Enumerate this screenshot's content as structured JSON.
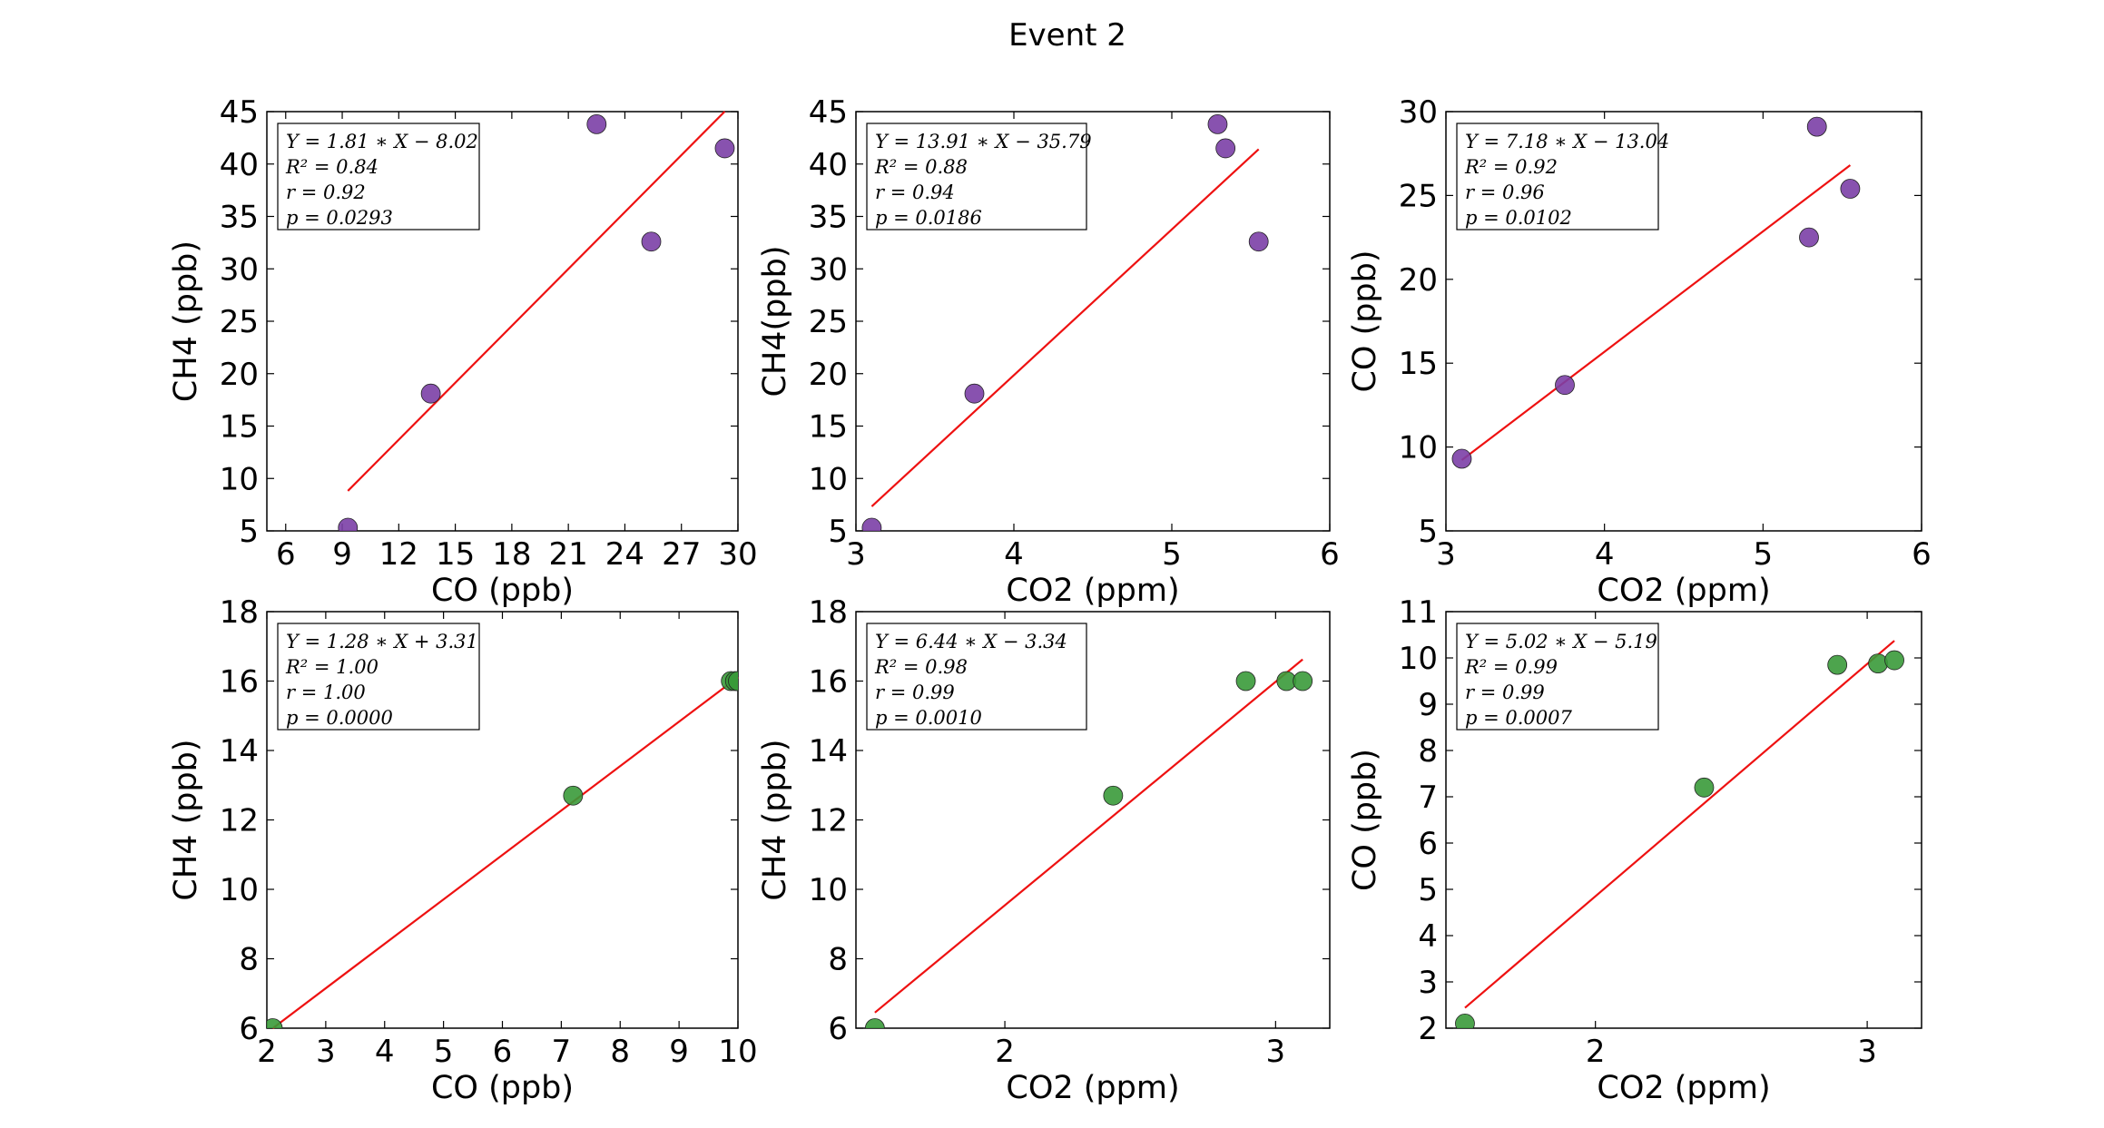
{
  "figure": {
    "title": "Event 2"
  },
  "chart_data": [
    {
      "type": "scatter",
      "xlabel": "CO (ppb)",
      "ylabel": "CH4 (ppb)",
      "xlim": [
        5,
        30
      ],
      "ylim": [
        5,
        45
      ],
      "xticks": [
        6,
        9,
        12,
        15,
        18,
        21,
        24,
        27,
        30
      ],
      "yticks": [
        5,
        10,
        15,
        20,
        25,
        30,
        35,
        40,
        45
      ],
      "point_color": "#7b3fa6",
      "points": [
        [
          9.3,
          5.3
        ],
        [
          13.7,
          18.1
        ],
        [
          22.5,
          43.8
        ],
        [
          25.4,
          32.6
        ],
        [
          29.3,
          41.5
        ]
      ],
      "fit": {
        "slope": 1.81,
        "intercept": -8.02,
        "x_range": [
          9.3,
          29.3
        ]
      },
      "stats": [
        "Y = 1.81 ∗ X − 8.02",
        "R² = 0.84",
        "r = 0.92",
        "p = 0.0293"
      ]
    },
    {
      "type": "scatter",
      "xlabel": "CO2 (ppm)",
      "ylabel": "CH4(ppb)",
      "xlim": [
        3,
        6
      ],
      "ylim": [
        5,
        45
      ],
      "xticks": [
        3,
        4,
        5,
        6
      ],
      "yticks": [
        5,
        10,
        15,
        20,
        25,
        30,
        35,
        40,
        45
      ],
      "point_color": "#7b3fa6",
      "points": [
        [
          3.1,
          5.3
        ],
        [
          3.75,
          18.1
        ],
        [
          5.29,
          43.8
        ],
        [
          5.34,
          41.5
        ],
        [
          5.55,
          32.6
        ]
      ],
      "fit": {
        "slope": 13.91,
        "intercept": -35.79,
        "x_range": [
          3.1,
          5.55
        ]
      },
      "stats": [
        "Y = 13.91 ∗ X − 35.79",
        "R² = 0.88",
        "r = 0.94",
        "p = 0.0186"
      ]
    },
    {
      "type": "scatter",
      "xlabel": "CO2 (ppm)",
      "ylabel": "CO (ppb)",
      "xlim": [
        3,
        6
      ],
      "ylim": [
        5,
        30
      ],
      "xticks": [
        3,
        4,
        5,
        6
      ],
      "yticks": [
        5,
        10,
        15,
        20,
        25,
        30
      ],
      "point_color": "#7b3fa6",
      "points": [
        [
          3.1,
          9.3
        ],
        [
          3.75,
          13.7
        ],
        [
          5.29,
          22.5
        ],
        [
          5.34,
          29.1
        ],
        [
          5.55,
          25.4
        ]
      ],
      "fit": {
        "slope": 7.18,
        "intercept": -13.04,
        "x_range": [
          3.1,
          5.55
        ]
      },
      "stats": [
        "Y = 7.18 ∗ X − 13.04",
        "R² = 0.92",
        "r = 0.96",
        "p = 0.0102"
      ]
    },
    {
      "type": "scatter",
      "xlabel": "CO (ppb)",
      "ylabel": "CH4 (ppb)",
      "xlim": [
        2,
        10
      ],
      "ylim": [
        6,
        18
      ],
      "xticks": [
        2,
        3,
        4,
        5,
        6,
        7,
        8,
        9,
        10
      ],
      "yticks": [
        6,
        8,
        10,
        12,
        14,
        16,
        18
      ],
      "point_color": "#3a9a3a",
      "points": [
        [
          2.1,
          6.0
        ],
        [
          7.2,
          12.7
        ],
        [
          9.88,
          16.0
        ],
        [
          9.95,
          16.0
        ],
        [
          10.0,
          16.0
        ]
      ],
      "fit": {
        "slope": 1.28,
        "intercept": 3.31,
        "x_range": [
          2.1,
          10.0
        ]
      },
      "stats": [
        "Y = 1.28 ∗ X + 3.31",
        "R² = 1.00",
        "r = 1.00",
        "p = 0.0000"
      ]
    },
    {
      "type": "scatter",
      "xlabel": "CO2 (ppm)",
      "ylabel": "CH4 (ppb)",
      "xlim": [
        1.45,
        3.2
      ],
      "ylim": [
        6,
        18
      ],
      "xticks": [
        2,
        3
      ],
      "yticks": [
        6,
        8,
        10,
        12,
        14,
        16,
        18
      ],
      "point_color": "#3a9a3a",
      "points": [
        [
          1.52,
          6.0
        ],
        [
          2.4,
          12.7
        ],
        [
          2.89,
          16.0
        ],
        [
          3.04,
          16.0
        ],
        [
          3.1,
          16.0
        ]
      ],
      "fit": {
        "slope": 6.44,
        "intercept": -3.34,
        "x_range": [
          1.52,
          3.1
        ]
      },
      "stats": [
        "Y = 6.44 ∗ X − 3.34",
        "R² = 0.98",
        "r = 0.99",
        "p = 0.0010"
      ]
    },
    {
      "type": "scatter",
      "xlabel": "CO2 (ppm)",
      "ylabel": "CO (ppb)",
      "xlim": [
        1.45,
        3.2
      ],
      "ylim": [
        2,
        11
      ],
      "xticks": [
        2,
        3
      ],
      "yticks": [
        2,
        3,
        4,
        5,
        6,
        7,
        8,
        9,
        10,
        11
      ],
      "point_color": "#3a9a3a",
      "points": [
        [
          1.52,
          2.1
        ],
        [
          2.4,
          7.2
        ],
        [
          2.89,
          9.85
        ],
        [
          3.04,
          9.88
        ],
        [
          3.1,
          9.95
        ]
      ],
      "fit": {
        "slope": 5.02,
        "intercept": -5.19,
        "x_range": [
          1.52,
          3.1
        ]
      },
      "stats": [
        "Y = 5.02 ∗ X − 5.19",
        "R² = 0.99",
        "r = 0.99",
        "p = 0.0007"
      ]
    }
  ]
}
